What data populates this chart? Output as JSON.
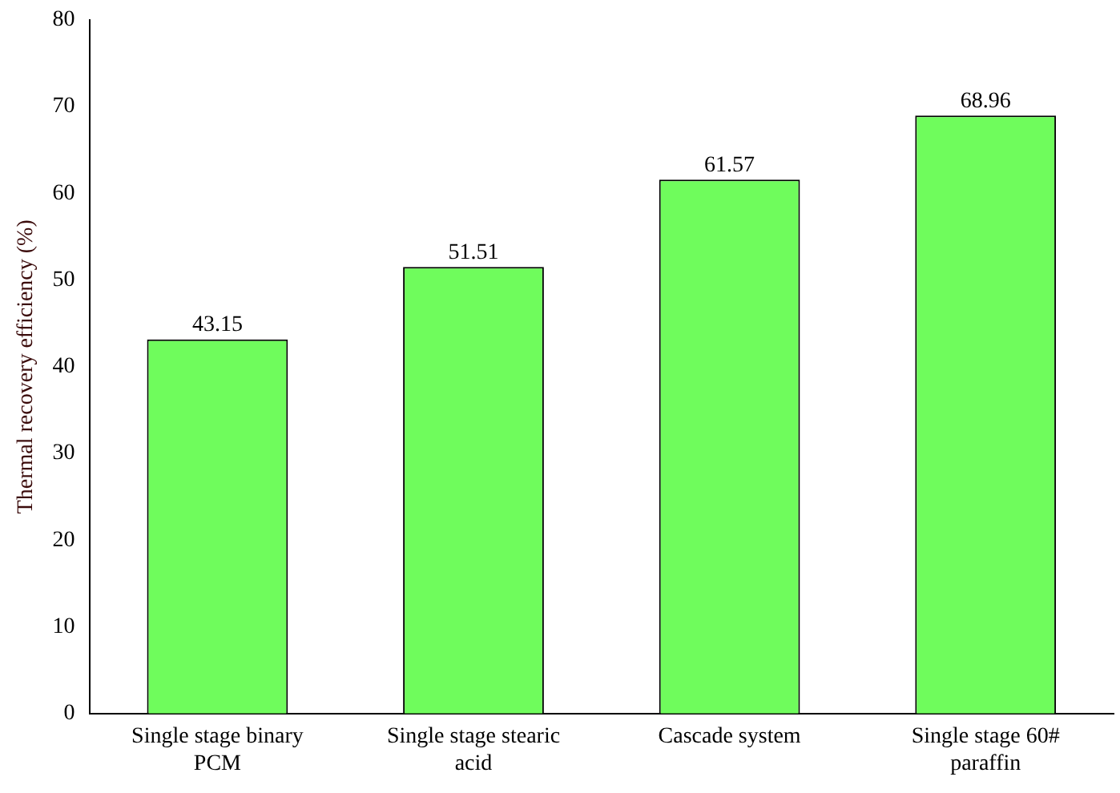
{
  "chart_data": {
    "type": "bar",
    "ylabel": "Thermal recovery efficiency (%)",
    "categories": [
      "Single stage binary PCM",
      "Single stage stearic acid",
      "Cascade system",
      "Single stage 60# paraffin"
    ],
    "values": [
      43.15,
      51.51,
      61.57,
      68.96
    ],
    "color": "#6ffc5c",
    "ylim": [
      0,
      80
    ],
    "yticks": [
      0,
      10,
      20,
      30,
      40,
      50,
      60,
      70,
      80
    ],
    "grid": false,
    "legend": false,
    "data_labels": true
  }
}
